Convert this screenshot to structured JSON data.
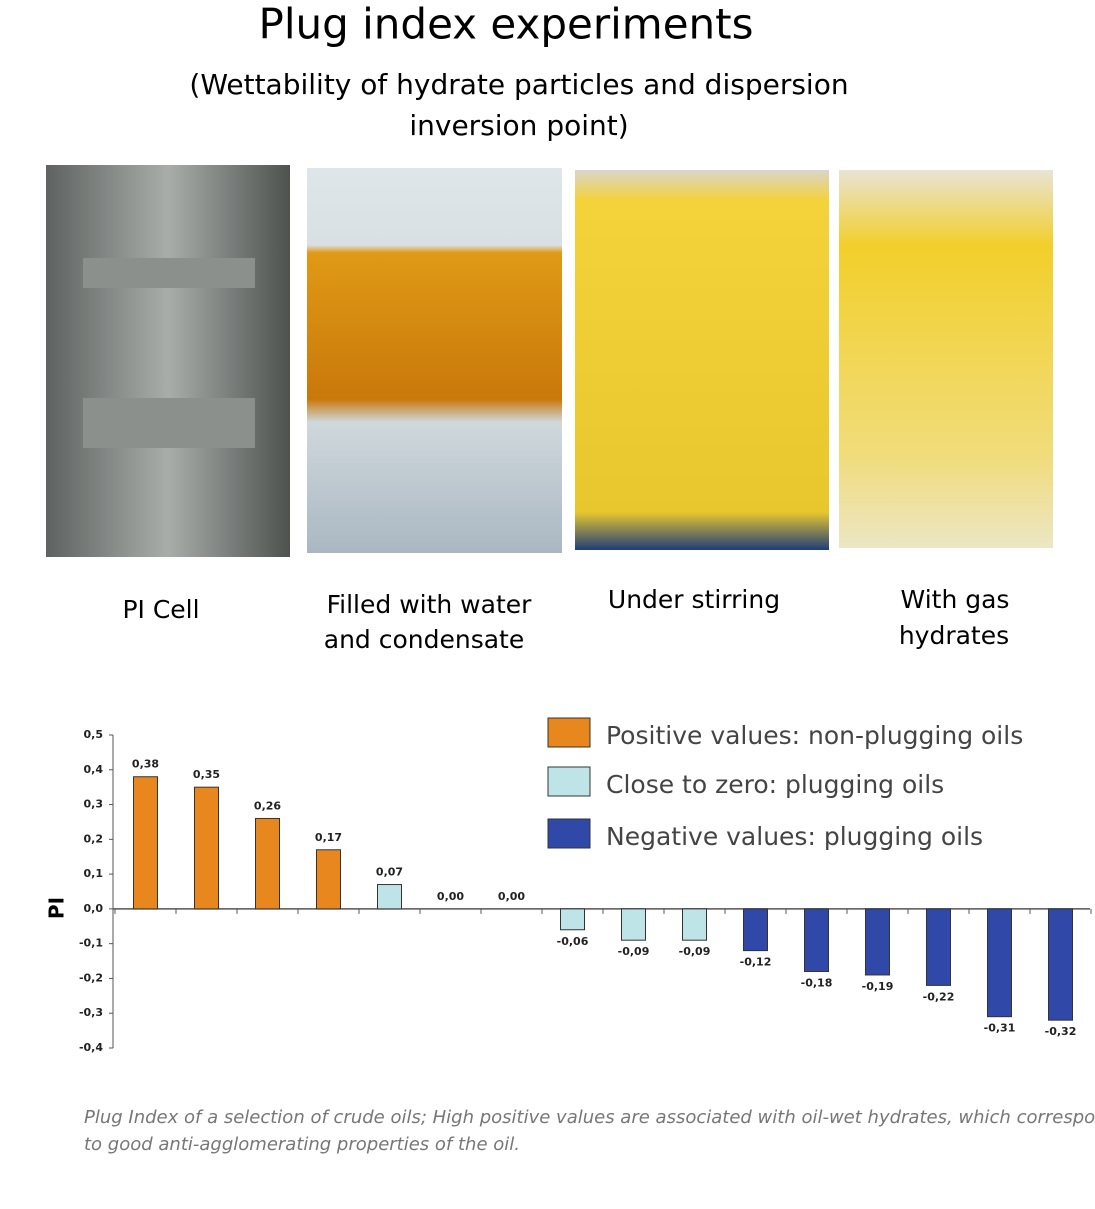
{
  "header": {
    "title": "Plug index experiments",
    "subtitle": [
      "(Wettability of hydrate particles and dispersion",
      "inversion point)"
    ]
  },
  "photos": [
    {
      "caption": [
        "PI Cell"
      ]
    },
    {
      "caption": [
        "Filled with water",
        "and condensate"
      ]
    },
    {
      "caption": [
        "Under stirring"
      ]
    },
    {
      "caption": [
        "With gas",
        "hydrates"
      ]
    }
  ],
  "chart_data": {
    "type": "bar",
    "y_label": "PI",
    "series": [
      {
        "name": "Positive values: non-plugging oils",
        "color": "#e8871e",
        "values": [
          0.38,
          0.35,
          0.26,
          0.17,
          null,
          null,
          null,
          null,
          null,
          null,
          null,
          null,
          null,
          null,
          null,
          null
        ],
        "value_labels": [
          "0,38",
          "0,35",
          "0,26",
          "0,17",
          null,
          null,
          null,
          null,
          null,
          null,
          null,
          null,
          null,
          null,
          null,
          null
        ]
      },
      {
        "name": "Close to zero: plugging oils",
        "color": "#bfe4e8",
        "values": [
          null,
          null,
          null,
          null,
          0.07,
          0,
          0,
          -0.06,
          -0.09,
          -0.09,
          null,
          null,
          null,
          null,
          null,
          null
        ],
        "value_labels": [
          null,
          null,
          null,
          null,
          "0,07",
          "0,00",
          "0,00",
          "-0,06",
          "-0,09",
          "-0,09",
          null,
          null,
          null,
          null,
          null,
          null
        ]
      },
      {
        "name": "Negative values: plugging oils",
        "color": "#3048a8",
        "values": [
          null,
          null,
          null,
          null,
          null,
          null,
          null,
          null,
          null,
          null,
          -0.12,
          -0.18,
          -0.19,
          -0.22,
          -0.31,
          -0.32
        ],
        "value_labels": [
          null,
          null,
          null,
          null,
          null,
          null,
          null,
          null,
          null,
          null,
          "-0,12",
          "-0,18",
          "-0,19",
          "-0,22",
          "-0,31",
          "-0,32"
        ]
      }
    ],
    "ylim": [
      -0.4,
      0.5
    ],
    "yticks": [
      {
        "value": 0.5,
        "label": "0,5"
      },
      {
        "value": 0.4,
        "label": "0,4"
      },
      {
        "value": 0.3,
        "label": "0,3"
      },
      {
        "value": 0.2,
        "label": "0,2"
      },
      {
        "value": 0.1,
        "label": "0,1"
      },
      {
        "value": 0,
        "label": "0,0"
      },
      {
        "value": -0.1,
        "label": "-0,1"
      },
      {
        "value": -0.2,
        "label": "-0,2"
      },
      {
        "value": -0.3,
        "label": "-0,3"
      },
      {
        "value": -0.4,
        "label": "-0,4"
      }
    ],
    "grid": false
  },
  "footnote": [
    "Plug Index of a selection of crude oils; High positive values are associated with oil-wet hydrates, which correspond",
    "to good anti-agglomerating properties of the oil."
  ]
}
